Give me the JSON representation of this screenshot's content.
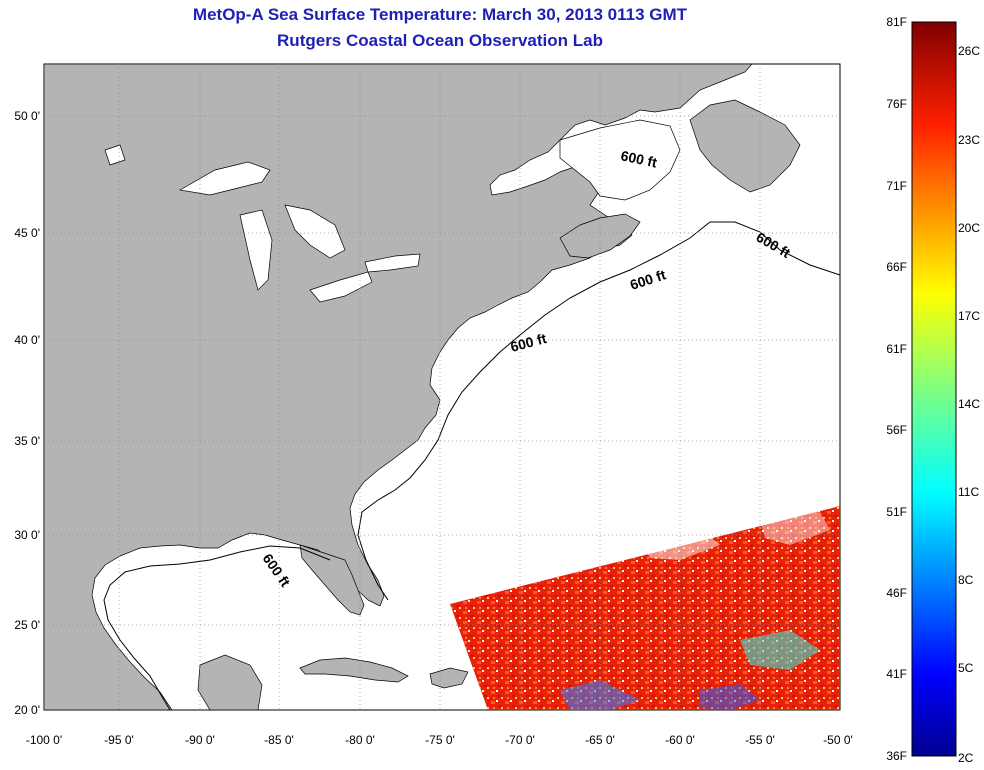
{
  "title": "MetOp-A Sea Surface Temperature:  March 30, 2013 0113 GMT",
  "subtitle": "Rutgers Coastal Ocean Observation Lab",
  "map": {
    "lat_ticks": [
      "50 0'",
      "45 0'",
      "40 0'",
      "35 0'",
      "30 0'",
      "25 0'",
      "20 0'"
    ],
    "lon_ticks": [
      "-100 0'",
      "-95 0'",
      "-90 0'",
      "-85 0'",
      "-80 0'",
      "-75 0'",
      "-70 0'",
      "-65 0'",
      "-60 0'",
      "-55 0'",
      "-50 0'"
    ],
    "contour_label": "600 ft",
    "land_color": "#b4b4b4",
    "ocean_color": "#ffffff"
  },
  "colorbar": {
    "f_labels": [
      "81F",
      "76F",
      "71F",
      "66F",
      "61F",
      "56F",
      "51F",
      "46F",
      "41F",
      "36F"
    ],
    "c_labels": [
      "26C",
      "23C",
      "20C",
      "17C",
      "14C",
      "11C",
      "8C",
      "5C",
      "2C"
    ],
    "colors": [
      "#00008f",
      "#0000ff",
      "#0080ff",
      "#00ffff",
      "#80ff80",
      "#ffff00",
      "#ff8000",
      "#ff0000",
      "#800000"
    ]
  }
}
